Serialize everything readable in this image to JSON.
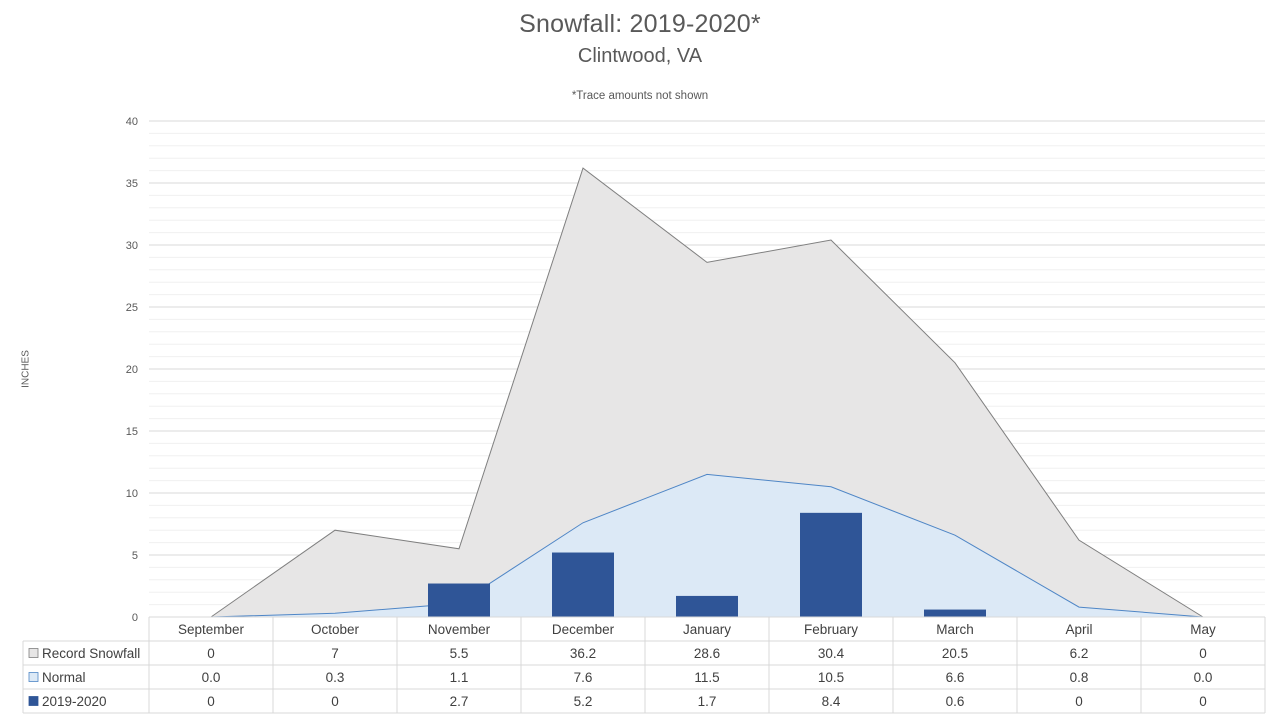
{
  "chart_data": {
    "type": "area",
    "title": "Snowfall: 2019-2020*",
    "subtitle": "Clintwood, VA",
    "note": "*Trace amounts not shown",
    "ylabel": "INCHES",
    "ylim": [
      0,
      40
    ],
    "yticks": [
      "0",
      "5",
      "10",
      "15",
      "20",
      "25",
      "30",
      "35",
      "40"
    ],
    "ytick_values": [
      0,
      5,
      10,
      15,
      20,
      25,
      30,
      35,
      40
    ],
    "grid": true,
    "legend_placement": "data-table-left",
    "categories": [
      "September",
      "October",
      "November",
      "December",
      "January",
      "February",
      "March",
      "April",
      "May"
    ],
    "series": [
      {
        "name": "Record Snowfall",
        "kind": "area",
        "color": "#e7e6e6",
        "line_color": "#7f7f7f",
        "values": [
          0,
          7,
          5.5,
          36.2,
          28.6,
          30.4,
          20.5,
          6.2,
          0
        ],
        "labels": [
          "0",
          "7",
          "5.5",
          "36.2",
          "28.6",
          "30.4",
          "20.5",
          "6.2",
          "0"
        ]
      },
      {
        "name": "Normal",
        "kind": "area",
        "color": "#dce9f6",
        "line_color": "#4f86c6",
        "values": [
          0.0,
          0.3,
          1.1,
          7.6,
          11.5,
          10.5,
          6.6,
          0.8,
          0.0
        ],
        "labels": [
          "0.0",
          "0.3",
          "1.1",
          "7.6",
          "11.5",
          "10.5",
          "6.6",
          "0.8",
          "0.0"
        ]
      },
      {
        "name": "2019-2020",
        "kind": "bar",
        "color": "#2f5597",
        "values": [
          0,
          0,
          2.7,
          5.2,
          1.7,
          8.4,
          0.6,
          0,
          0
        ],
        "labels": [
          "0",
          "0",
          "2.7",
          "5.2",
          "1.7",
          "8.4",
          "0.6",
          "0",
          "0"
        ]
      }
    ]
  }
}
